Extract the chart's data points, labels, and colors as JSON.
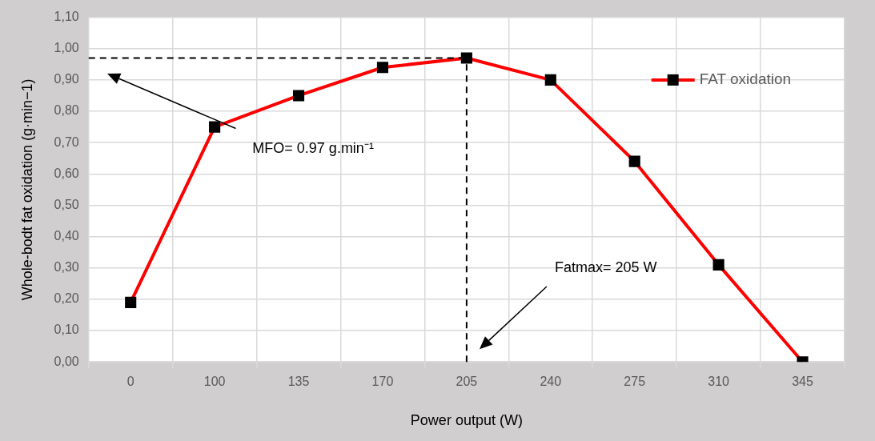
{
  "chart_data": {
    "type": "line",
    "xlabel": "Power output (W)",
    "ylabel": "Whole-bodt fat oxidation (g·min−1)",
    "categories": [
      "0",
      "100",
      "135",
      "170",
      "205",
      "240",
      "275",
      "310",
      "345"
    ],
    "series": [
      {
        "name": "FAT oxidation",
        "color": "#ff0000",
        "values": [
          0.19,
          0.75,
          0.85,
          0.94,
          0.97,
          0.9,
          0.64,
          0.31,
          0.0
        ]
      }
    ],
    "ylim": [
      0,
      1.1
    ],
    "yticks": [
      {
        "value": 0,
        "label": "0,00"
      },
      {
        "value": 0.1,
        "label": "0,10"
      },
      {
        "value": 0.2,
        "label": "0,20"
      },
      {
        "value": 0.3,
        "label": "0,30"
      },
      {
        "value": 0.4,
        "label": "0,40"
      },
      {
        "value": 0.5,
        "label": "0,50"
      },
      {
        "value": 0.6,
        "label": "0,60"
      },
      {
        "value": 0.7,
        "label": "0,70"
      },
      {
        "value": 0.8,
        "label": "0,80"
      },
      {
        "value": 0.9,
        "label": "0,90"
      },
      {
        "value": 1.0,
        "label": "1,00"
      },
      {
        "value": 1.1,
        "label": "1,10"
      }
    ],
    "ref_lines": [
      {
        "axis": "y",
        "value": 0.97,
        "color": "#000000",
        "line_style": "dashed"
      },
      {
        "axis": "x",
        "value": "205",
        "color": "#000000",
        "line_style": "dashed"
      }
    ],
    "annotations": [
      "MFO= 0.97 g.min⁻¹",
      "Fatmax= 205 W"
    ],
    "grid": true,
    "legend": "top right",
    "marker": "square",
    "line_style": "solid"
  }
}
